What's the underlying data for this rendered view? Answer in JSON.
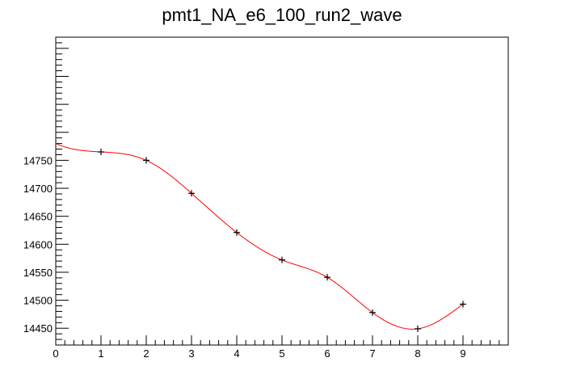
{
  "chart_data": {
    "type": "line",
    "title": "pmt1_NA_e6_100_run2_wave",
    "xlabel": "",
    "ylabel": "",
    "xlim": [
      0,
      10
    ],
    "ylim": [
      14420,
      14970
    ],
    "x_ticks": [
      "0",
      "1",
      "2",
      "3",
      "4",
      "5",
      "6",
      "7",
      "8",
      "9"
    ],
    "y_ticks": [
      "14450",
      "14500",
      "14550",
      "14600",
      "14650",
      "14700",
      "14750"
    ],
    "grid": false,
    "legend": "none",
    "series": [
      {
        "color": "#ff0000",
        "marker": "plus",
        "marker_color": "#000000",
        "x": [
          1,
          2,
          3,
          4,
          5,
          6,
          7,
          8,
          9
        ],
        "y": [
          14765,
          14750,
          14691,
          14621,
          14572,
          14541,
          14478,
          14449,
          14493
        ]
      }
    ]
  }
}
